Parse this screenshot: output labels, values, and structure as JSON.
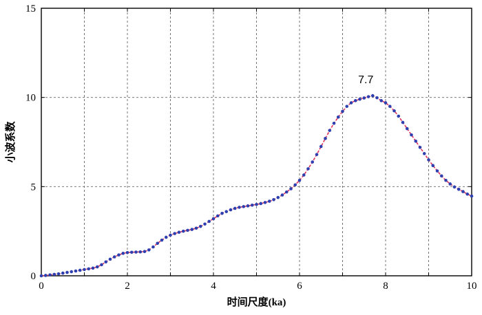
{
  "chart_data": {
    "type": "line",
    "title": "",
    "xlabel": "时间尺度(ka)",
    "ylabel": "小波系数",
    "xlim": [
      0,
      10
    ],
    "ylim": [
      0,
      15
    ],
    "xticks": [
      "0",
      "2",
      "4",
      "6",
      "8",
      "10"
    ],
    "yticks": [
      "0",
      "5",
      "10",
      "15"
    ],
    "grid": true,
    "annotation": {
      "text": "7.7",
      "x": 7.7,
      "y": 10.1
    },
    "colors": {
      "line": "#e0305a",
      "marker": "#2e3fb0",
      "grid": "#666666"
    },
    "series": [
      {
        "x": [
          0.0,
          0.1,
          0.2,
          0.3,
          0.4,
          0.5,
          0.6,
          0.7,
          0.8,
          0.9,
          1.0,
          1.1,
          1.2,
          1.3,
          1.4,
          1.5,
          1.6,
          1.7,
          1.8,
          1.9,
          2.0,
          2.1,
          2.2,
          2.3,
          2.4,
          2.5,
          2.6,
          2.7,
          2.8,
          2.9,
          3.0,
          3.1,
          3.2,
          3.3,
          3.4,
          3.5,
          3.6,
          3.7,
          3.8,
          3.9,
          4.0,
          4.1,
          4.2,
          4.3,
          4.4,
          4.5,
          4.6,
          4.7,
          4.8,
          4.9,
          5.0,
          5.1,
          5.2,
          5.3,
          5.4,
          5.5,
          5.6,
          5.7,
          5.8,
          5.9,
          6.0,
          6.1,
          6.2,
          6.3,
          6.4,
          6.5,
          6.6,
          6.7,
          6.8,
          6.9,
          7.0,
          7.1,
          7.2,
          7.3,
          7.4,
          7.5,
          7.6,
          7.7,
          7.8,
          7.9,
          8.0,
          8.1,
          8.2,
          8.3,
          8.4,
          8.5,
          8.6,
          8.7,
          8.8,
          8.9,
          9.0,
          9.1,
          9.2,
          9.3,
          9.4,
          9.5,
          9.6,
          9.7,
          9.8,
          9.9,
          10.0
        ],
        "values": [
          0.0,
          0.02,
          0.05,
          0.08,
          0.11,
          0.15,
          0.19,
          0.23,
          0.27,
          0.31,
          0.35,
          0.39,
          0.43,
          0.5,
          0.62,
          0.78,
          0.93,
          1.06,
          1.17,
          1.26,
          1.3,
          1.32,
          1.33,
          1.34,
          1.36,
          1.45,
          1.62,
          1.82,
          2.0,
          2.16,
          2.28,
          2.37,
          2.44,
          2.5,
          2.55,
          2.6,
          2.67,
          2.77,
          2.9,
          3.05,
          3.2,
          3.36,
          3.5,
          3.6,
          3.7,
          3.78,
          3.84,
          3.88,
          3.92,
          3.96,
          4.0,
          4.05,
          4.11,
          4.18,
          4.27,
          4.39,
          4.53,
          4.7,
          4.88,
          5.1,
          5.35,
          5.65,
          6.0,
          6.38,
          6.8,
          7.25,
          7.7,
          8.15,
          8.55,
          8.9,
          9.22,
          9.5,
          9.7,
          9.82,
          9.9,
          9.97,
          10.04,
          10.1,
          9.98,
          9.82,
          9.7,
          9.5,
          9.25,
          8.95,
          8.6,
          8.25,
          7.9,
          7.55,
          7.2,
          6.85,
          6.5,
          6.18,
          5.88,
          5.6,
          5.35,
          5.15,
          4.98,
          4.85,
          4.72,
          4.58,
          4.47
        ]
      }
    ]
  }
}
